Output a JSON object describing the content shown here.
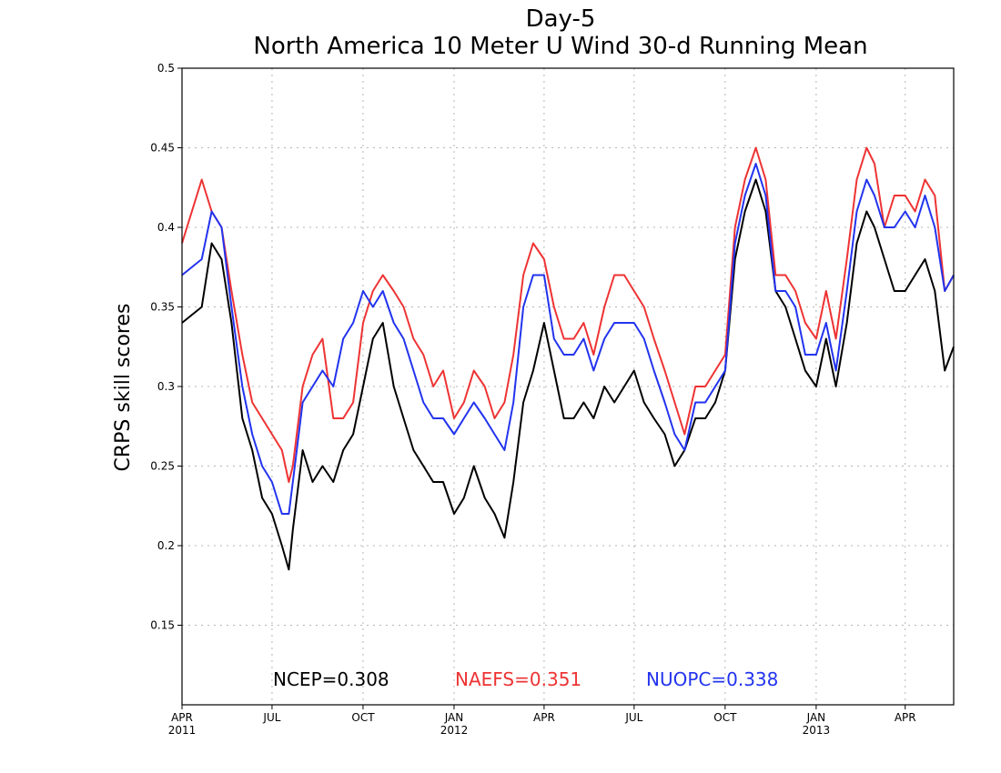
{
  "chart_data": {
    "type": "line",
    "title": "Day-5",
    "subtitle": "North America 10 Meter U Wind 30-d Running Mean",
    "ylabel": "CRPS skill scores",
    "xlabel": "",
    "ylim": [
      0.1,
      0.5
    ],
    "xlim": [
      "2011-04-01",
      "2013-05-20"
    ],
    "grid": true,
    "y_ticks": [
      "0.15",
      "0.2",
      "0.25",
      "0.3",
      "0.35",
      "0.4",
      "0.45",
      "0.5"
    ],
    "x_ticks": [
      {
        "date": "2011-04-01",
        "label": "APR",
        "year": "2011"
      },
      {
        "date": "2011-07-01",
        "label": "JUL",
        "year": ""
      },
      {
        "date": "2011-10-01",
        "label": "OCT",
        "year": ""
      },
      {
        "date": "2012-01-01",
        "label": "JAN",
        "year": "2012"
      },
      {
        "date": "2012-04-01",
        "label": "APR",
        "year": ""
      },
      {
        "date": "2012-07-01",
        "label": "JUL",
        "year": ""
      },
      {
        "date": "2012-10-01",
        "label": "OCT",
        "year": ""
      },
      {
        "date": "2013-01-01",
        "label": "JAN",
        "year": "2013"
      },
      {
        "date": "2013-04-01",
        "label": "APR",
        "year": ""
      }
    ],
    "series": [
      {
        "name": "NCEP",
        "color": "#000000",
        "mean_label": "NCEP=0.308",
        "x": [
          "2011-04-01",
          "2011-04-21",
          "2011-05-01",
          "2011-05-11",
          "2011-05-21",
          "2011-06-01",
          "2011-06-11",
          "2011-06-21",
          "2011-07-01",
          "2011-07-11",
          "2011-07-18",
          "2011-07-22",
          "2011-08-01",
          "2011-08-11",
          "2011-08-21",
          "2011-09-01",
          "2011-09-11",
          "2011-09-21",
          "2011-10-01",
          "2011-10-11",
          "2011-10-21",
          "2011-11-01",
          "2011-11-11",
          "2011-11-21",
          "2011-12-01",
          "2011-12-11",
          "2011-12-21",
          "2012-01-01",
          "2012-01-11",
          "2012-01-21",
          "2012-02-01",
          "2012-02-11",
          "2012-02-21",
          "2012-03-01",
          "2012-03-11",
          "2012-03-21",
          "2012-04-01",
          "2012-04-11",
          "2012-04-21",
          "2012-05-01",
          "2012-05-11",
          "2012-05-21",
          "2012-06-01",
          "2012-06-11",
          "2012-06-21",
          "2012-07-01",
          "2012-07-11",
          "2012-07-21",
          "2012-08-01",
          "2012-08-11",
          "2012-08-21",
          "2012-09-01",
          "2012-09-11",
          "2012-09-21",
          "2012-10-01",
          "2012-10-11",
          "2012-10-21",
          "2012-11-01",
          "2012-11-11",
          "2012-11-21",
          "2012-12-01",
          "2012-12-11",
          "2012-12-21",
          "2013-01-01",
          "2013-01-11",
          "2013-01-21",
          "2013-02-01",
          "2013-02-11",
          "2013-02-21",
          "2013-03-01",
          "2013-03-11",
          "2013-03-21",
          "2013-04-01",
          "2013-04-11",
          "2013-04-21",
          "2013-05-01",
          "2013-05-11",
          "2013-05-20"
        ],
        "values": [
          0.34,
          0.35,
          0.39,
          0.38,
          0.34,
          0.28,
          0.26,
          0.23,
          0.22,
          0.2,
          0.185,
          0.21,
          0.26,
          0.24,
          0.25,
          0.24,
          0.26,
          0.27,
          0.3,
          0.33,
          0.34,
          0.3,
          0.28,
          0.26,
          0.25,
          0.24,
          0.24,
          0.22,
          0.23,
          0.25,
          0.23,
          0.22,
          0.205,
          0.24,
          0.29,
          0.31,
          0.34,
          0.31,
          0.28,
          0.28,
          0.29,
          0.28,
          0.3,
          0.29,
          0.3,
          0.31,
          0.29,
          0.28,
          0.27,
          0.25,
          0.26,
          0.28,
          0.28,
          0.29,
          0.31,
          0.38,
          0.41,
          0.43,
          0.41,
          0.36,
          0.35,
          0.33,
          0.31,
          0.3,
          0.33,
          0.3,
          0.34,
          0.39,
          0.41,
          0.4,
          0.38,
          0.36,
          0.36,
          0.37,
          0.38,
          0.36,
          0.31,
          0.325
        ]
      },
      {
        "name": "NAEFS",
        "color": "#ee3333",
        "mean_label": "NAEFS=0.351",
        "x": [
          "2011-04-01",
          "2011-04-21",
          "2011-05-01",
          "2011-05-11",
          "2011-05-21",
          "2011-06-01",
          "2011-06-11",
          "2011-06-21",
          "2011-07-01",
          "2011-07-11",
          "2011-07-18",
          "2011-07-22",
          "2011-08-01",
          "2011-08-11",
          "2011-08-21",
          "2011-09-01",
          "2011-09-11",
          "2011-09-21",
          "2011-10-01",
          "2011-10-11",
          "2011-10-21",
          "2011-11-01",
          "2011-11-11",
          "2011-11-21",
          "2011-12-01",
          "2011-12-11",
          "2011-12-21",
          "2012-01-01",
          "2012-01-11",
          "2012-01-21",
          "2012-02-01",
          "2012-02-11",
          "2012-02-21",
          "2012-03-01",
          "2012-03-11",
          "2012-03-21",
          "2012-04-01",
          "2012-04-11",
          "2012-04-21",
          "2012-05-01",
          "2012-05-11",
          "2012-05-21",
          "2012-06-01",
          "2012-06-11",
          "2012-06-21",
          "2012-07-01",
          "2012-07-11",
          "2012-07-21",
          "2012-08-01",
          "2012-08-11",
          "2012-08-21",
          "2012-09-01",
          "2012-09-11",
          "2012-09-21",
          "2012-10-01",
          "2012-10-11",
          "2012-10-21",
          "2012-11-01",
          "2012-11-11",
          "2012-11-21",
          "2012-12-01",
          "2012-12-11",
          "2012-12-21",
          "2013-01-01",
          "2013-01-11",
          "2013-01-21",
          "2013-02-01",
          "2013-02-11",
          "2013-02-21",
          "2013-03-01",
          "2013-03-11",
          "2013-03-21",
          "2013-04-01",
          "2013-04-11",
          "2013-04-21",
          "2013-05-01",
          "2013-05-11",
          "2013-05-20"
        ],
        "values": [
          0.39,
          0.43,
          0.41,
          0.4,
          0.36,
          0.32,
          0.29,
          0.28,
          0.27,
          0.26,
          0.24,
          0.25,
          0.3,
          0.32,
          0.33,
          0.28,
          0.28,
          0.29,
          0.34,
          0.36,
          0.37,
          0.36,
          0.35,
          0.33,
          0.32,
          0.3,
          0.31,
          0.28,
          0.29,
          0.31,
          0.3,
          0.28,
          0.29,
          0.32,
          0.37,
          0.39,
          0.38,
          0.35,
          0.33,
          0.33,
          0.34,
          0.32,
          0.35,
          0.37,
          0.37,
          0.36,
          0.35,
          0.33,
          0.31,
          0.29,
          0.27,
          0.3,
          0.3,
          0.31,
          0.32,
          0.4,
          0.43,
          0.45,
          0.43,
          0.37,
          0.37,
          0.36,
          0.34,
          0.33,
          0.36,
          0.33,
          0.38,
          0.43,
          0.45,
          0.44,
          0.4,
          0.42,
          0.42,
          0.41,
          0.43,
          0.42,
          0.36,
          0.37
        ]
      },
      {
        "name": "NUOPC",
        "color": "#2233ee",
        "mean_label": "NUOPC=0.338",
        "x": [
          "2011-04-01",
          "2011-04-21",
          "2011-05-01",
          "2011-05-11",
          "2011-05-21",
          "2011-06-01",
          "2011-06-11",
          "2011-06-21",
          "2011-07-01",
          "2011-07-11",
          "2011-07-18",
          "2011-07-22",
          "2011-08-01",
          "2011-08-11",
          "2011-08-21",
          "2011-09-01",
          "2011-09-11",
          "2011-09-21",
          "2011-10-01",
          "2011-10-11",
          "2011-10-21",
          "2011-11-01",
          "2011-11-11",
          "2011-11-21",
          "2011-12-01",
          "2011-12-11",
          "2011-12-21",
          "2012-01-01",
          "2012-01-11",
          "2012-01-21",
          "2012-02-01",
          "2012-02-11",
          "2012-02-21",
          "2012-03-01",
          "2012-03-11",
          "2012-03-21",
          "2012-04-01",
          "2012-04-11",
          "2012-04-21",
          "2012-05-01",
          "2012-05-11",
          "2012-05-21",
          "2012-06-01",
          "2012-06-11",
          "2012-06-21",
          "2012-07-01",
          "2012-07-11",
          "2012-07-21",
          "2012-08-01",
          "2012-08-11",
          "2012-08-21",
          "2012-09-01",
          "2012-09-11",
          "2012-09-21",
          "2012-10-01",
          "2012-10-11",
          "2012-10-21",
          "2012-11-01",
          "2012-11-11",
          "2012-11-21",
          "2012-12-01",
          "2012-12-11",
          "2012-12-21",
          "2013-01-01",
          "2013-01-11",
          "2013-01-21",
          "2013-02-01",
          "2013-02-11",
          "2013-02-21",
          "2013-03-01",
          "2013-03-11",
          "2013-03-21",
          "2013-04-01",
          "2013-04-11",
          "2013-04-21",
          "2013-05-01",
          "2013-05-11",
          "2013-05-20"
        ],
        "values": [
          0.37,
          0.38,
          0.41,
          0.4,
          0.35,
          0.3,
          0.27,
          0.25,
          0.24,
          0.22,
          0.22,
          0.24,
          0.29,
          0.3,
          0.31,
          0.3,
          0.33,
          0.34,
          0.36,
          0.35,
          0.36,
          0.34,
          0.33,
          0.31,
          0.29,
          0.28,
          0.28,
          0.27,
          0.28,
          0.29,
          0.28,
          0.27,
          0.26,
          0.29,
          0.35,
          0.37,
          0.37,
          0.33,
          0.32,
          0.32,
          0.33,
          0.31,
          0.33,
          0.34,
          0.34,
          0.34,
          0.33,
          0.31,
          0.29,
          0.27,
          0.26,
          0.29,
          0.29,
          0.3,
          0.31,
          0.39,
          0.42,
          0.44,
          0.42,
          0.36,
          0.36,
          0.35,
          0.32,
          0.32,
          0.34,
          0.31,
          0.36,
          0.41,
          0.43,
          0.42,
          0.4,
          0.4,
          0.41,
          0.4,
          0.42,
          0.4,
          0.36,
          0.37
        ]
      }
    ]
  }
}
